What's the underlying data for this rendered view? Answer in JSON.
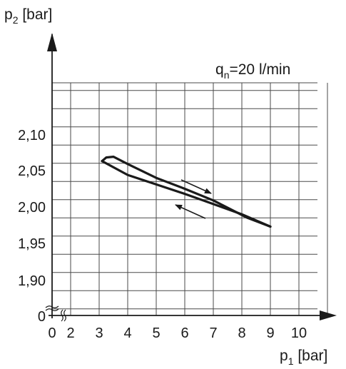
{
  "chart_data": {
    "type": "line",
    "ylabel": {
      "base": "p",
      "sub": "2",
      "unit": " [bar]"
    },
    "xlabel": {
      "base": "p",
      "sub": "1",
      "unit": " [bar]"
    },
    "annotation": {
      "base": "q",
      "sub": "n",
      "rest": "=20 l/min"
    },
    "x_ticks": [
      "0",
      "2",
      "3",
      "4",
      "5",
      "6",
      "7",
      "8",
      "9",
      "10"
    ],
    "y_ticks": [
      "0",
      "1,90",
      "1,95",
      "2,00",
      "2,05",
      "2,10"
    ],
    "x_break": true,
    "y_break": true,
    "xlim": [
      2,
      11
    ],
    "ylim": [
      1.86,
      2.16
    ],
    "grid": true,
    "series": [
      {
        "label": "increasing p1",
        "direction": "right",
        "points": [
          [
            3.1,
            2.063
          ],
          [
            4.0,
            2.044
          ],
          [
            5.0,
            2.031
          ],
          [
            6.0,
            2.018
          ],
          [
            7.0,
            2.004
          ],
          [
            8.0,
            1.99
          ],
          [
            9.0,
            1.973
          ]
        ]
      },
      {
        "label": "decreasing p1",
        "direction": "left",
        "points": [
          [
            9.0,
            1.973
          ],
          [
            8.2,
            1.985
          ],
          [
            7.0,
            2.009
          ],
          [
            6.0,
            2.025
          ],
          [
            5.0,
            2.04
          ],
          [
            4.0,
            2.059
          ],
          [
            3.5,
            2.069
          ],
          [
            3.25,
            2.068
          ],
          [
            3.1,
            2.063
          ]
        ]
      }
    ]
  }
}
